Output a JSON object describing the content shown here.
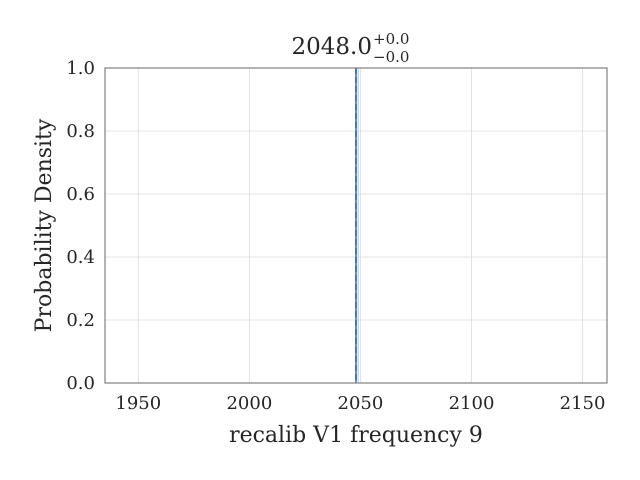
{
  "chart_data": {
    "type": "line",
    "title": {
      "value": "2048.0",
      "upper": "+0.0",
      "lower": "−0.0"
    },
    "xlabel": "recalib V1 frequency 9",
    "ylabel": "Probability Density",
    "xlim": [
      1935,
      2161
    ],
    "ylim": [
      0.0,
      1.0
    ],
    "x_ticks": [
      1950,
      2000,
      2050,
      2100,
      2150
    ],
    "x_tick_labels": [
      "1950",
      "2000",
      "2050",
      "2100",
      "2150"
    ],
    "y_ticks": [
      0.0,
      0.2,
      0.4,
      0.6,
      0.8,
      1.0
    ],
    "y_tick_labels": [
      "0.0",
      "0.2",
      "0.4",
      "0.6",
      "0.8",
      "1.0"
    ],
    "grid": true,
    "series": [
      {
        "kind": "vertical-line",
        "x": 2048.0,
        "color": "#4c72b0",
        "style": "solid"
      }
    ],
    "markers": [
      {
        "kind": "median",
        "x": 2048.0,
        "color": "#4c72b0",
        "style": "dashed"
      },
      {
        "kind": "lower-bound",
        "x": 2048.0,
        "color": "#4c72b0",
        "style": "dashed"
      },
      {
        "kind": "upper-bound",
        "x": 2048.0,
        "color": "#4c72b0",
        "style": "dashed"
      },
      {
        "kind": "reference",
        "x": 2049.0,
        "color": "#add8e6",
        "style": "solid"
      }
    ],
    "colors": {
      "series": "#4c72b0",
      "reference": "#add8e6",
      "grid": "#dcdcdc",
      "frame": "#808080",
      "text": "#262626"
    }
  }
}
